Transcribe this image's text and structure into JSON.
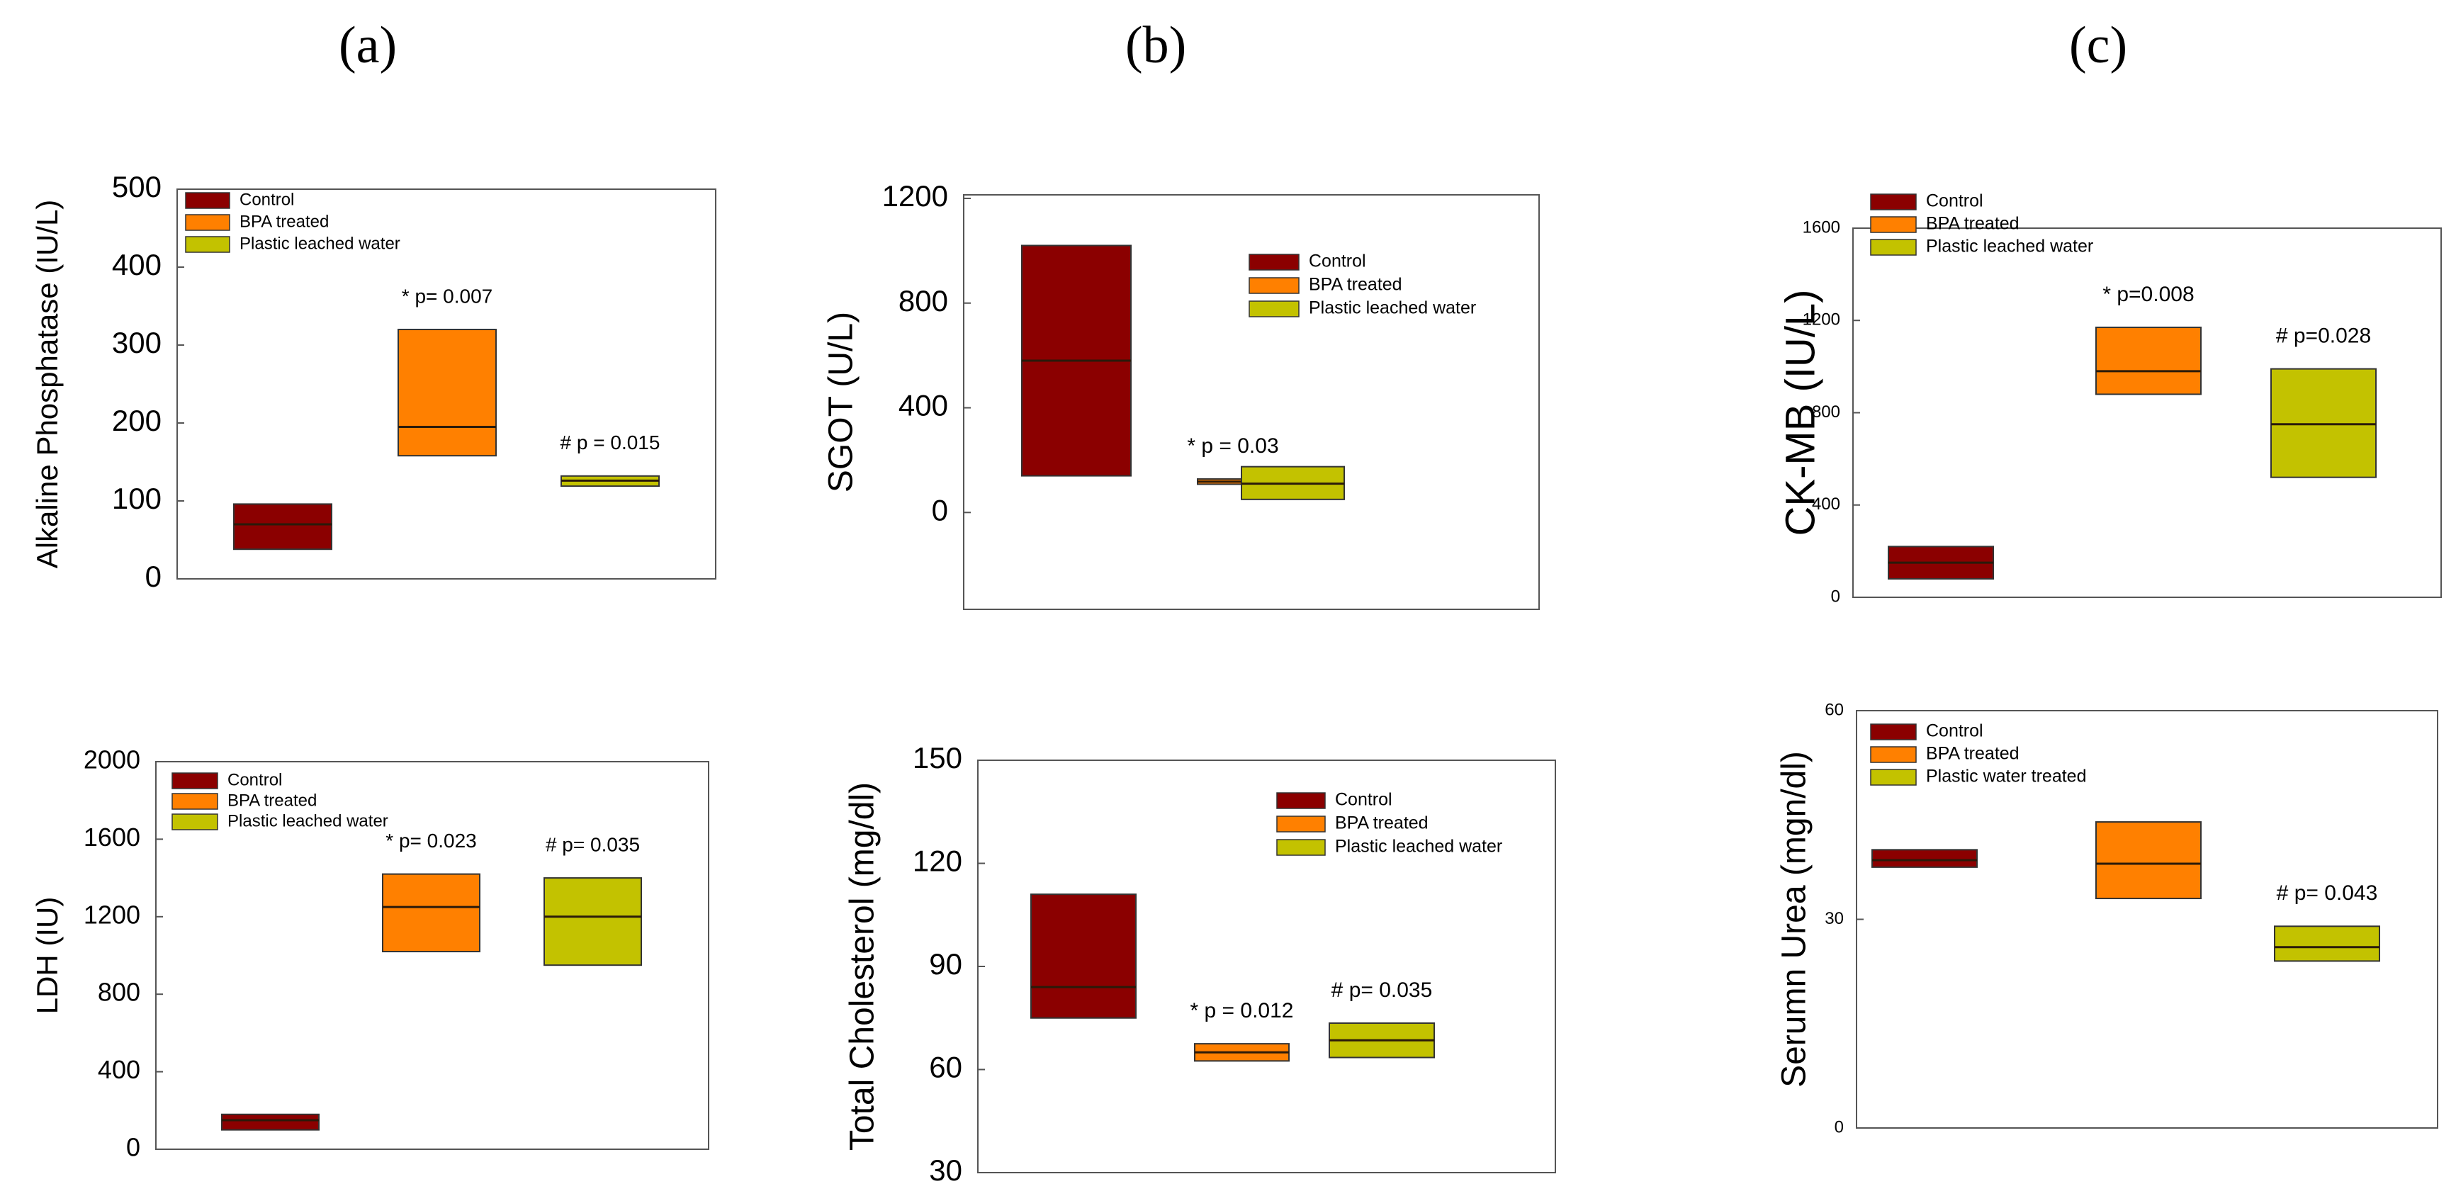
{
  "column_labels": [
    "(a)",
    "(b)",
    "(c)"
  ],
  "colors": {
    "control": "#8b0000",
    "bpa": "#ff8000",
    "plastic": "#c3c200",
    "axis": "#555555",
    "median": "#2a1a0a"
  },
  "chart_data": [
    {
      "id": "alp",
      "type": "box",
      "ylabel": "Alkaline Phosphatase (IU/L)",
      "ylim": [
        0,
        500
      ],
      "yticks": [
        0,
        100,
        200,
        300,
        400,
        500
      ],
      "legend": [
        "Control",
        "BPA treated",
        "Plastic leached water"
      ],
      "legend_position": "top-left",
      "boxes": [
        {
          "group": "Control",
          "q1": 38,
          "median": 70,
          "q3": 96,
          "label": ""
        },
        {
          "group": "BPA treated",
          "q1": 158,
          "median": 195,
          "q3": 320,
          "label": "* p= 0.007"
        },
        {
          "group": "Plastic leached water",
          "q1": 119,
          "median": 126,
          "q3": 132,
          "label": "# p = 0.015"
        }
      ]
    },
    {
      "id": "sgot",
      "type": "box",
      "ylabel": "SGOT (U/L)",
      "ylim": [
        -370,
        1200
      ],
      "yticks": [
        0,
        400,
        800,
        1200
      ],
      "legend": [
        "Control",
        "BPA treated",
        "Plastic leached water"
      ],
      "legend_position": "top-right",
      "boxes": [
        {
          "group": "Control",
          "q1": 140,
          "median": 580,
          "q3": 1020,
          "label": ""
        },
        {
          "group": "BPA treated",
          "q1": 108,
          "median": 118,
          "q3": 128,
          "label": "* p = 0.03"
        },
        {
          "group": "Plastic leached water",
          "q1": 50,
          "median": 110,
          "q3": 175,
          "label": ""
        }
      ]
    },
    {
      "id": "ckmb",
      "type": "box",
      "ylabel": "CK-MB (IU/L)",
      "ylim": [
        0,
        1600
      ],
      "yticks": [
        0,
        400,
        800,
        1200,
        1600
      ],
      "legend": [
        "Control",
        "BPA treated",
        "Plastic leached water"
      ],
      "legend_position": "top-left",
      "boxes": [
        {
          "group": "Control",
          "q1": 80,
          "median": 150,
          "q3": 220,
          "label": ""
        },
        {
          "group": "BPA treated",
          "q1": 880,
          "median": 980,
          "q3": 1170,
          "label": "* p=0.008"
        },
        {
          "group": "Plastic leached water",
          "q1": 520,
          "median": 750,
          "q3": 990,
          "label": "# p=0.028"
        }
      ]
    },
    {
      "id": "ldh",
      "type": "box",
      "ylabel": "LDH (IU)",
      "ylim": [
        0,
        2000
      ],
      "yticks": [
        0,
        400,
        800,
        1200,
        1600,
        2000
      ],
      "legend": [
        "Control",
        "BPA treated",
        "Plastic leached water"
      ],
      "legend_position": "top-left",
      "boxes": [
        {
          "group": "Control",
          "q1": 100,
          "median": 150,
          "q3": 180,
          "label": ""
        },
        {
          "group": "BPA treated",
          "q1": 1020,
          "median": 1250,
          "q3": 1420,
          "label": "* p= 0.023"
        },
        {
          "group": "Plastic leached water",
          "q1": 950,
          "median": 1200,
          "q3": 1400,
          "label": "# p= 0.035"
        }
      ]
    },
    {
      "id": "chol",
      "type": "box",
      "ylabel": "Total Cholesterol (mg/dl)",
      "ylim": [
        30,
        150
      ],
      "yticks": [
        30,
        60,
        90,
        120,
        150
      ],
      "legend": [
        "Control",
        "BPA treated",
        "Plastic leached water"
      ],
      "legend_position": "top-right",
      "boxes": [
        {
          "group": "Control",
          "q1": 75,
          "median": 84,
          "q3": 111,
          "label": ""
        },
        {
          "group": "BPA treated",
          "q1": 62.5,
          "median": 65,
          "q3": 67.5,
          "label": "* p = 0.012"
        },
        {
          "group": "Plastic leached water",
          "q1": 63.5,
          "median": 68.5,
          "q3": 73.5,
          "label": "# p= 0.035"
        }
      ]
    },
    {
      "id": "urea",
      "type": "box",
      "ylabel": "Serumn Urea (mgn/dl)",
      "ylim": [
        0,
        60
      ],
      "yticks": [
        0,
        30,
        60
      ],
      "legend": [
        "Control",
        "BPA treated",
        "Plastic water treated"
      ],
      "legend_position": "top-left",
      "boxes": [
        {
          "group": "Control",
          "q1": 37.5,
          "median": 38.5,
          "q3": 40,
          "label": ""
        },
        {
          "group": "BPA treated",
          "q1": 33,
          "median": 38,
          "q3": 44,
          "label": ""
        },
        {
          "group": "Plastic water treated",
          "q1": 24,
          "median": 26,
          "q3": 29,
          "label": "# p= 0.043"
        }
      ]
    }
  ]
}
